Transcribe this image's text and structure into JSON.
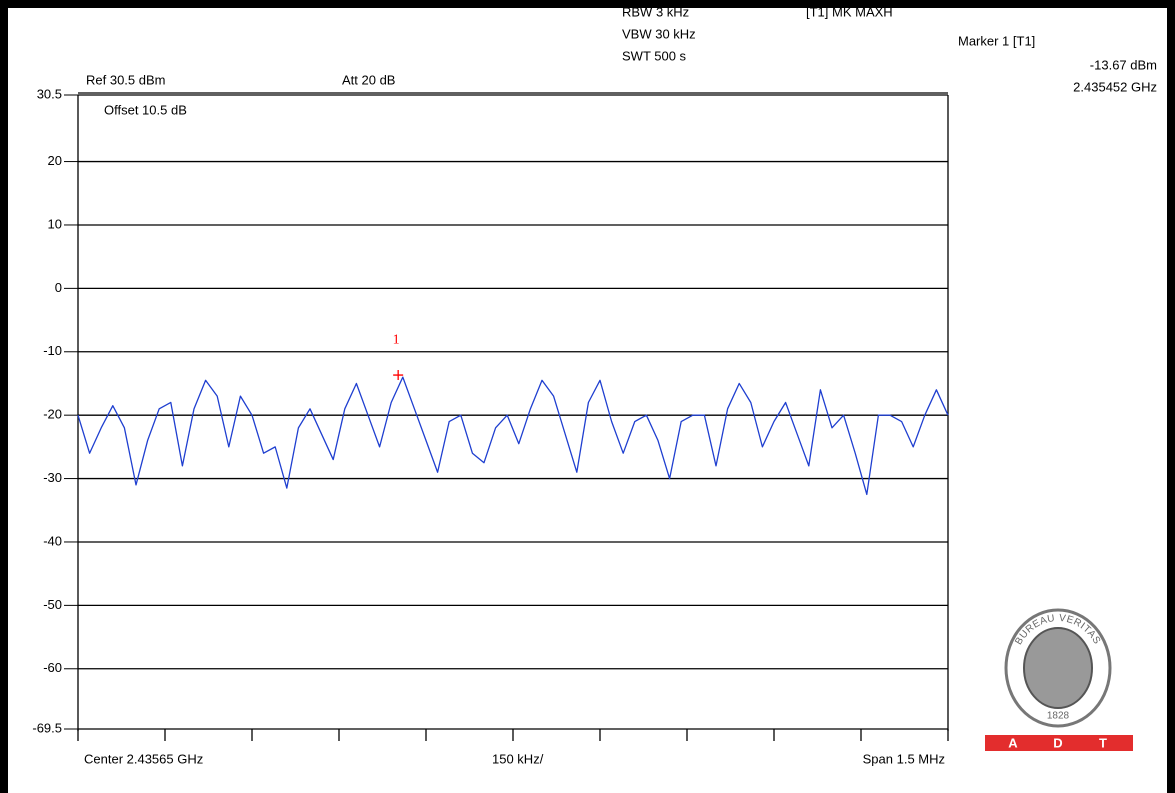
{
  "chart_data": {
    "type": "line",
    "settings": {
      "rbw": "RBW 3 kHz",
      "vbw": "VBW 30 kHz",
      "swt": "SWT 500 s",
      "trace_mode": "[T1] MK MAXH",
      "ref": "Ref 30.5 dBm",
      "att": "Att 20 dB",
      "offset": "Offset 10.5 dB"
    },
    "x_labels": {
      "center": "Center 2.43565 GHz",
      "division": "150 kHz/",
      "span": "Span 1.5 MHz"
    },
    "marker": {
      "title": "Marker 1 [T1]",
      "number": "1",
      "x": 2.435452,
      "x_label": "2.435452 GHz",
      "value": -13.67,
      "value_label": "-13.67 dBm",
      "color": "#ff0000"
    },
    "color": "#1f3fd0",
    "grid": true,
    "xlim": [
      2.4349,
      2.4364
    ],
    "xticks": [
      2.4349,
      2.43505,
      2.4352,
      2.43535,
      2.4355,
      2.43565,
      2.4358,
      2.43595,
      2.4361,
      2.43625,
      2.4364
    ],
    "ylim": [
      -69.5,
      30.5
    ],
    "yticks": [
      30.5,
      20,
      10,
      0,
      -10,
      -20,
      -30,
      -40,
      -50,
      -60,
      -69.5
    ],
    "x": [
      2.4349,
      2.43492,
      2.43494,
      2.43496,
      2.43498,
      2.435,
      2.43502,
      2.43504,
      2.43506,
      2.43508,
      2.4351,
      2.43512,
      2.43514,
      2.43516,
      2.43518,
      2.4352,
      2.43522,
      2.43524,
      2.43526,
      2.43528,
      2.4353,
      2.43532,
      2.43534,
      2.43536,
      2.43538,
      2.4354,
      2.43542,
      2.43544,
      2.43546,
      2.43548,
      2.4355,
      2.43552,
      2.43554,
      2.43556,
      2.43558,
      2.4356,
      2.43562,
      2.43564,
      2.43566,
      2.43568,
      2.4357,
      2.43572,
      2.43574,
      2.43576,
      2.43578,
      2.4358,
      2.43582,
      2.43584,
      2.43586,
      2.43588,
      2.4359,
      2.43592,
      2.43594,
      2.43596,
      2.43598,
      2.436,
      2.43602,
      2.43604,
      2.43606,
      2.43608,
      2.4361,
      2.43612,
      2.43614,
      2.43616,
      2.43618,
      2.4362,
      2.43622,
      2.43624,
      2.43626,
      2.43628,
      2.4363,
      2.43632,
      2.43634,
      2.43636,
      2.43638,
      2.4364
    ],
    "values": [
      -20,
      -26,
      -22,
      -18.5,
      -22,
      -31,
      -24,
      -19,
      -18,
      -28,
      -19,
      -14.5,
      -17,
      -25,
      -17,
      -20,
      -26,
      -25,
      -31.5,
      -22,
      -19,
      -23,
      -27,
      -19,
      -15,
      -20,
      -25,
      -18,
      -14,
      -19,
      -24,
      -29,
      -21,
      -20,
      -26,
      -27.5,
      -22,
      -20,
      -24.5,
      -19,
      -14.5,
      -17,
      -23,
      -29,
      -18,
      -14.5,
      -21,
      -26,
      -21,
      -20,
      -24,
      -30,
      -21,
      -20,
      -20,
      -28,
      -19,
      -15,
      -18,
      -25,
      -21,
      -18,
      -23,
      -28,
      -16,
      -22,
      -20,
      -26,
      -32.5,
      -20,
      -20,
      -21,
      -25,
      -20,
      -16,
      -20
    ],
    "logo": {
      "name": "BUREAU VERITAS",
      "year": "1828",
      "letters": [
        "A",
        "D",
        "T"
      ]
    }
  }
}
